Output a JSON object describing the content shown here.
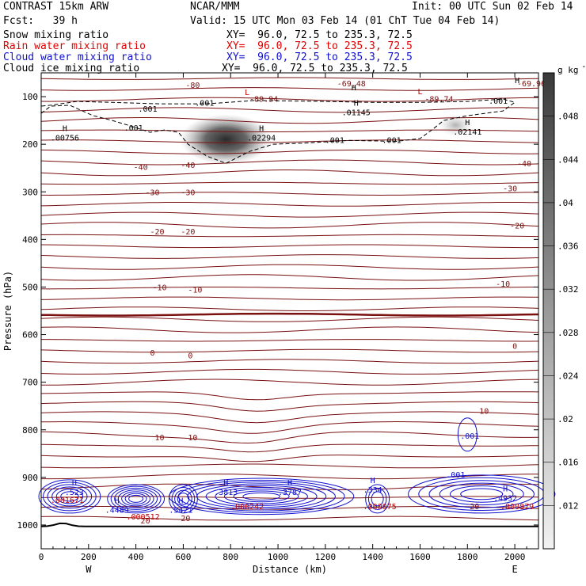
{
  "header": {
    "title": "CONTRAST 15km ARW",
    "center": "NCAR/MMM",
    "init": "Init: 00 UTC Sun 02 Feb 14",
    "fcst": "Fcst:   39 h",
    "valid": "Valid: 15 UTC Mon 03 Feb 14 (01 ChT Tue 04 Feb 14)",
    "fields": [
      {
        "name": "Snow mixing ratio",
        "xy": "XY=  96.0, 72.5 to 235.3, 72.5",
        "color": "#000000"
      },
      {
        "name": "Rain water mixing ratio",
        "xy": "XY=  96.0, 72.5 to 235.3, 72.5",
        "color": "#e00000"
      },
      {
        "name": "Cloud water mixing ratio",
        "xy": "XY=  96.0, 72.5 to 235.3, 72.5",
        "color": "#1010d0"
      },
      {
        "name": "Cloud ice mixing ratio",
        "xy": "XY=  96.0, 72.5 to 235.3, 72.5",
        "color": "#000000"
      }
    ]
  },
  "chart_data": {
    "type": "cross-section contour",
    "xlabel": "Distance (km)",
    "ylabel": "Pressure (hPa)",
    "xlim": [
      0,
      2100
    ],
    "ylim": [
      1050,
      50
    ],
    "x_ticks": [
      0,
      200,
      400,
      600,
      800,
      1000,
      1200,
      1400,
      1600,
      1800,
      2000
    ],
    "y_ticks": [
      100,
      200,
      300,
      400,
      500,
      600,
      700,
      800,
      900,
      1000
    ],
    "endpoints": {
      "left": "W",
      "right": "E"
    },
    "colorbar": {
      "unit": "g kg",
      "unit_exponent": "-1",
      "ticks": [
        0.048,
        0.044,
        0.04,
        0.036,
        0.032,
        0.028,
        0.024,
        0.02,
        0.016,
        0.012
      ],
      "tick_labels": [
        ".048",
        ".044",
        ".04",
        ".036",
        ".032",
        ".028",
        ".024",
        ".02",
        ".016",
        ".012"
      ]
    },
    "temperature_labels": [
      {
        "text": "-80",
        "x": 640,
        "p": 75
      },
      {
        "text": "-69.48",
        "x": 1310,
        "p": 72
      },
      {
        "text": "-69.96",
        "x": 2070,
        "p": 72
      },
      {
        "text": "-89.94",
        "x": 940,
        "p": 104
      },
      {
        "text": "-89.74",
        "x": 1680,
        "p": 104
      },
      {
        "text": "-40",
        "x": 420,
        "p": 247
      },
      {
        "text": "-40",
        "x": 620,
        "p": 243
      },
      {
        "text": "-40",
        "x": 2040,
        "p": 240
      },
      {
        "text": "-30",
        "x": 470,
        "p": 300
      },
      {
        "text": "-30",
        "x": 620,
        "p": 300
      },
      {
        "text": "-30",
        "x": 1980,
        "p": 292
      },
      {
        "text": "-20",
        "x": 490,
        "p": 383
      },
      {
        "text": "-20",
        "x": 620,
        "p": 383
      },
      {
        "text": "-20",
        "x": 2010,
        "p": 370
      },
      {
        "text": "-10",
        "x": 500,
        "p": 500
      },
      {
        "text": "-10",
        "x": 650,
        "p": 505
      },
      {
        "text": "-10",
        "x": 1950,
        "p": 493
      },
      {
        "text": "0",
        "x": 470,
        "p": 637
      },
      {
        "text": "0",
        "x": 630,
        "p": 643
      },
      {
        "text": "0",
        "x": 2000,
        "p": 623
      },
      {
        "text": "10",
        "x": 500,
        "p": 815
      },
      {
        "text": "10",
        "x": 640,
        "p": 815
      },
      {
        "text": "10",
        "x": 1870,
        "p": 760
      },
      {
        "text": "20",
        "x": 440,
        "p": 990
      },
      {
        "text": "20",
        "x": 610,
        "p": 985
      },
      {
        "text": "20",
        "x": 1830,
        "p": 960
      }
    ],
    "extrema_labels": [
      {
        "kind": "L",
        "x": 870,
        "p": 90,
        "color": "#c00000"
      },
      {
        "kind": "L",
        "x": 1600,
        "p": 88,
        "color": "#c00000"
      },
      {
        "kind": "H",
        "x": 1320,
        "p": 80,
        "color": "#000000"
      },
      {
        "kind": "H",
        "x": 2010,
        "p": 65,
        "color": "#000000"
      },
      {
        "kind": "H",
        "x": 100,
        "p": 166,
        "value": ".00756",
        "color": "#000000"
      },
      {
        "kind": "H",
        "x": 930,
        "p": 166,
        "value": ".02294",
        "color": "#000000"
      },
      {
        "kind": "H",
        "x": 1330,
        "p": 112,
        "value": ".01145",
        "color": "#000000"
      },
      {
        "kind": "H",
        "x": 1800,
        "p": 153,
        "value": ".02141",
        "color": "#000000"
      },
      {
        "kind": "H",
        "x": 140,
        "p": 910,
        "value": ".523",
        "color": "#1010d0"
      },
      {
        "kind": "H",
        "x": 320,
        "p": 948,
        "value": ".4489",
        "color": "#1010d0"
      },
      {
        "kind": "H",
        "x": 590,
        "p": 948,
        "value": ".5421",
        "color": "#1010d0"
      },
      {
        "kind": "H",
        "x": 780,
        "p": 910,
        "value": ".3813",
        "color": "#1010d0"
      },
      {
        "kind": "H",
        "x": 1050,
        "p": 910,
        "value": ".3787",
        "color": "#1010d0"
      },
      {
        "kind": "H",
        "x": 1400,
        "p": 905,
        "value": ".334",
        "color": "#1010d0"
      },
      {
        "kind": "H",
        "x": 1960,
        "p": 923,
        "value": ".4932",
        "color": "#1010d0"
      }
    ],
    "contour_value_labels": [
      {
        "text": ".001",
        "x": 450,
        "p": 125,
        "color": "#000000"
      },
      {
        "text": ".001",
        "x": 690,
        "p": 112,
        "color": "#000000"
      },
      {
        "text": ".001",
        "x": 390,
        "p": 165,
        "color": "#000000"
      },
      {
        "text": ".001",
        "x": 1240,
        "p": 191,
        "color": "#000000"
      },
      {
        "text": ".001",
        "x": 1480,
        "p": 191,
        "color": "#000000"
      },
      {
        "text": ".001",
        "x": 1930,
        "p": 108,
        "color": "#000000"
      },
      {
        "text": ".001",
        "x": 1810,
        "p": 812,
        "color": "#1010d0"
      },
      {
        "text": ".001",
        "x": 1750,
        "p": 894,
        "color": "#1010d0"
      },
      {
        "text": ".001671",
        "x": 110,
        "p": 947,
        "color": "#c00000"
      },
      {
        "text": ".000512",
        "x": 430,
        "p": 982,
        "color": "#c00000"
      },
      {
        "text": ".000242",
        "x": 870,
        "p": 960,
        "color": "#c00000"
      },
      {
        "text": ".000075",
        "x": 1430,
        "p": 960,
        "color": "#c00000"
      },
      {
        "text": ".000879",
        "x": 2010,
        "p": 960,
        "color": "#c00000"
      }
    ],
    "zero_isotherm_p": 558,
    "ground_p": 1000,
    "shading_maxima": [
      {
        "x": 780,
        "p": 190,
        "value": 0.048
      },
      {
        "x": 1750,
        "p": 160,
        "value": 0.02
      }
    ]
  }
}
